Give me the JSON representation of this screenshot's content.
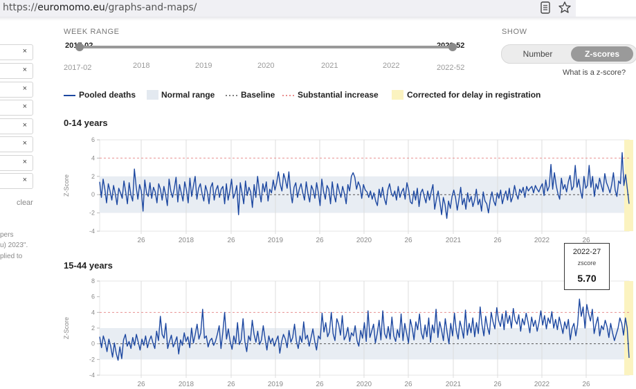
{
  "browser": {
    "url_prefix": "https://",
    "url_host": "euromomo.eu",
    "url_path": "/graphs-and-maps/"
  },
  "sidebar": {
    "filters": [
      "×",
      "×",
      "×",
      "×",
      "×",
      "×",
      "×",
      "×"
    ],
    "clear_label": "clear",
    "note_lines": [
      "pers",
      "u) 2023\".",
      "plied to"
    ]
  },
  "week_range": {
    "label": "WEEK RANGE",
    "start": "2017-02",
    "end": "2022-52",
    "start_sub": "2017-02",
    "end_sub": "2022-52",
    "years": [
      "2018",
      "2019",
      "2020",
      "2021",
      "2022"
    ]
  },
  "show": {
    "label": "SHOW",
    "options": [
      "Number",
      "Z-scores"
    ],
    "selected": "Z-scores",
    "help_link": "What is a z-score?"
  },
  "legend": {
    "pooled": "Pooled deaths",
    "normal": "Normal range",
    "baseline": "Baseline",
    "substantial": "Substantial increase",
    "corrected": "Corrected for delay in registration"
  },
  "colors": {
    "series": "#1c47a0",
    "normal_band": "#e8edf3",
    "baseline": "#555555",
    "substantial": "#e89090",
    "corrected": "#fbf3c0",
    "grid": "#dddddd"
  },
  "tooltip": {
    "week": "2022-27",
    "label": "zscore",
    "value": "5.70"
  },
  "chart_data": [
    {
      "type": "line",
      "title": "0-14 years",
      "ylabel": "Z-Score",
      "ylim": [
        -4,
        6
      ],
      "yticks": [
        -4,
        -2,
        0,
        2,
        4,
        6
      ],
      "normal_range": [
        -2,
        2
      ],
      "baseline": 0,
      "substantial_increase": 4,
      "x_labels": [
        "26",
        "2018",
        "26",
        "2019",
        "26",
        "2020",
        "26",
        "2021",
        "26",
        "2022",
        "26"
      ],
      "series": [
        {
          "values": [
            1.4,
            -0.3,
            1.7,
            0.6,
            -0.9,
            1.2,
            0.4,
            -0.6,
            1.0,
            0.1,
            -1.1,
            0.7,
            0.2,
            -0.4,
            1.5,
            0.3,
            -1.0,
            1.3,
            0.0,
            -0.7,
            2.8,
            0.9,
            -0.5,
            1.1,
            0.4,
            -1.8,
            1.6,
            0.2,
            -0.2,
            1.3,
            -0.4,
            0.8,
            0.3,
            -0.9,
            1.2,
            0.6,
            -0.6,
            0.9,
            0.0,
            -1.2,
            1.7,
            0.4,
            -0.3,
            0.7,
            1.9,
            -0.8,
            1.1,
            0.2,
            -0.7,
            1.4,
            0.5,
            -0.9,
            1.8,
            -0.2,
            0.9,
            2.0,
            -0.5,
            0.7,
            1.2,
            0.1,
            -0.7,
            1.0,
            0.3,
            -1.0,
            0.8,
            1.3,
            -0.6,
            0.5,
            1.0,
            -0.3,
            0.6,
            0.9,
            -1.0,
            1.2,
            -0.6,
            0.4,
            1.7,
            -0.4,
            0.1,
            1.0,
            -2.2,
            1.3,
            0.2,
            -1.0,
            1.5,
            -0.1,
            0.8,
            0.3,
            -1.4,
            1.1,
            -0.3,
            2.0,
            0.4,
            -0.8,
            1.2,
            0.3,
            1.4,
            -0.7,
            0.6,
            0.2,
            1.6,
            0.5,
            1.3,
            2.5,
            1.1,
            0.4,
            2.3,
            1.6,
            0.7,
            2.5,
            0.3,
            -0.9,
            0.8,
            1.3,
            -0.3,
            0.6,
            1.2,
            0.2,
            -0.6,
            1.4,
            0.1,
            -0.8,
            1.0,
            0.5,
            -0.4,
            1.3,
            0.2,
            -1.2,
            1.7,
            0.3,
            -0.5,
            1.0,
            0.6,
            -1.0,
            1.4,
            0.0,
            -0.8,
            1.2,
            0.4,
            -0.3,
            0.9,
            0.1,
            -1.0,
            1.1,
            0.4,
            2.0,
            2.4,
            1.9,
            0.6,
            1.4,
            0.9,
            -0.4,
            1.1,
            0.5,
            0.3,
            -0.3,
            0.4,
            -0.5,
            0.2,
            -0.7,
            -1.2,
            0.6,
            -0.3,
            0.8,
            -0.4,
            -1.1,
            0.5,
            1.2,
            0.2,
            -0.2,
            0.4,
            -0.6,
            0.9,
            -0.3,
            0.3,
            0.7,
            -0.5,
            1.3,
            0.5,
            -0.8,
            -1.0,
            0.4,
            -0.6,
            0.7,
            -1.3,
            0.2,
            0.6,
            -0.2,
            -0.9,
            0.4,
            -0.6,
            0.3,
            1.1,
            -1.6,
            -0.5,
            0.4,
            -0.8,
            -2.2,
            -0.3,
            -1.1,
            -2.6,
            -0.7,
            -1.5,
            -0.2,
            0.5,
            -0.3,
            -1.7,
            -0.5,
            0.8,
            -1.1,
            -0.4,
            -1.6,
            0.2,
            -0.8,
            -0.2,
            -1.3,
            -0.6,
            0.6,
            -1.1,
            -0.5,
            -1.8,
            0.3,
            -0.7,
            -1.0,
            -2.0,
            -0.6,
            0.3,
            -0.7,
            -1.2,
            0.2,
            -0.4,
            0.5,
            -1.0,
            -0.2,
            0.4,
            -0.6,
            0.7,
            -0.8,
            -0.2,
            1.0,
            0.1,
            -0.5,
            0.6,
            0.2,
            0.8,
            -0.3,
            0.9,
            0.4,
            0.7,
            0.9,
            0.2,
            1.0,
            0.6,
            0.3,
            0.8,
            1.2,
            -0.1,
            1.6,
            0.4,
            0.9,
            3.3,
            0.6,
            2.4,
            1.0,
            0.1,
            -0.5,
            1.8,
            0.6,
            1.1,
            0.3,
            1.4,
            2.1,
            0.5,
            0.9,
            3.2,
            0.8,
            1.7,
            0.4,
            -0.4,
            2.0,
            0.7,
            1.0,
            3.2,
            0.8,
            2.0,
            -0.2,
            1.2,
            0.6,
            1.8,
            1.0,
            0.3,
            2.3,
            1.3,
            0.8,
            0.2,
            1.1,
            2.4,
            0.5,
            -0.2,
            1.5,
            1.2,
            4.6,
            1.0,
            2.2,
            0.6,
            -1.0
          ]
        }
      ]
    },
    {
      "type": "line",
      "title": "15-44 years",
      "ylabel": "Z-Score",
      "ylim": [
        -4,
        8
      ],
      "yticks": [
        -4,
        -2,
        0,
        2,
        4,
        6,
        8
      ],
      "normal_range": [
        -2,
        2
      ],
      "baseline": 0,
      "substantial_increase": 4,
      "x_labels": [
        "26",
        "2018",
        "26",
        "2019",
        "26",
        "2020",
        "26",
        "2021",
        "26",
        "2022",
        "26"
      ],
      "series": [
        {
          "values": [
            0.9,
            -0.5,
            1.0,
            0.2,
            -1.0,
            0.6,
            -0.3,
            -1.7,
            0.1,
            -1.2,
            -2.1,
            -0.4,
            -1.9,
            0.5,
            1.2,
            -0.3,
            0.3,
            -0.6,
            0.8,
            -0.2,
            1.2,
            0.2,
            -0.8,
            0.6,
            -0.2,
            1.0,
            -0.5,
            0.4,
            1.0,
            0.1,
            -0.6,
            1.6,
            0.4,
            3.5,
            1.2,
            0.7,
            2.6,
            -0.6,
            0.3,
            1.1,
            -0.4,
            0.2,
            0.9,
            -1.3,
            0.5,
            -0.2,
            1.4,
            0.3,
            0.9,
            -0.5,
            2.0,
            0.1,
            1.2,
            2.5,
            0.6,
            1.4,
            4.4,
            0.7,
            1.0,
            -0.4,
            0.4,
            0.7,
            -0.2,
            0.3,
            1.2,
            2.3,
            -0.6,
            1.5,
            4.0,
            0.6,
            1.9,
            0.3,
            -0.7,
            1.0,
            0.0,
            2.7,
            -0.1,
            0.5,
            3.2,
            0.3,
            -1.0,
            1.0,
            0.4,
            3.0,
            1.2,
            0.2,
            1.6,
            -0.1,
            0.5,
            2.3,
            0.6,
            -0.8,
            1.0,
            0.1,
            0.7,
            -0.3,
            0.4,
            1.0,
            -1.2,
            0.3,
            1.2,
            0.6,
            -0.5,
            1.7,
            0.2,
            0.8,
            2.5,
            0.4,
            -0.6,
            1.0,
            0.2,
            2.8,
            0.6,
            1.1,
            -0.3,
            0.8,
            1.9,
            0.3,
            -0.8,
            1.0,
            0.6,
            3.9,
            1.5,
            2.7,
            0.9,
            1.5,
            4.0,
            1.3,
            0.4,
            3.2,
            2.5,
            1.1,
            3.6,
            0.5,
            1.0,
            2.1,
            0.3,
            1.4,
            1.0,
            2.3,
            0.4,
            -0.3,
            1.7,
            0.7,
            2.7,
            0.3,
            4.2,
            0.8,
            1.6,
            2.5,
            0.1,
            1.3,
            3.0,
            0.5,
            4.2,
            1.3,
            0.7,
            2.2,
            0.6,
            3.4,
            1.0,
            0.3,
            1.8,
            0.8,
            3.8,
            0.4,
            2.6,
            1.3,
            0.1,
            3.1,
            2.0,
            0.5,
            2.8,
            1.8,
            3.8,
            1.4,
            0.6,
            2.4,
            0.9,
            3.3,
            0.2,
            2.4,
            1.4,
            4.4,
            0.8,
            2.8,
            1.7,
            0.4,
            3.2,
            1.5,
            0.0,
            2.6,
            1.0,
            3.9,
            1.7,
            0.6,
            2.9,
            1.9,
            0.7,
            4.3,
            1.1,
            2.6,
            1.4,
            3.3,
            0.9,
            2.7,
            1.3,
            4.7,
            2.4,
            1.0,
            3.5,
            2.1,
            1.2,
            4.0,
            2.8,
            1.9,
            4.6,
            3.0,
            2.2,
            3.8,
            1.8,
            4.2,
            2.6,
            3.6,
            2.0,
            4.5,
            3.0,
            2.5,
            3.7,
            1.6,
            3.2,
            2.4,
            3.9,
            2.8,
            1.4,
            3.4,
            2.2,
            3.0,
            1.6,
            2.7,
            4.2,
            2.4,
            3.6,
            1.9,
            3.3,
            2.6,
            4.1,
            2.0,
            3.1,
            1.8,
            3.4,
            2.4,
            1.3,
            2.8,
            1.9,
            3.1,
            0.5,
            2.0,
            2.6,
            1.0,
            2.4,
            5.7,
            3.5,
            4.7,
            2.0,
            5.0,
            3.8,
            2.9,
            4.4,
            1.3,
            2.5,
            3.4,
            1.0,
            2.3,
            1.8,
            3.0,
            2.2,
            0.8,
            2.6,
            1.4,
            0.4,
            1.2,
            2.0,
            3.3,
            2.6,
            1.1,
            3.3,
            2.0,
            -1.8
          ]
        }
      ]
    }
  ]
}
